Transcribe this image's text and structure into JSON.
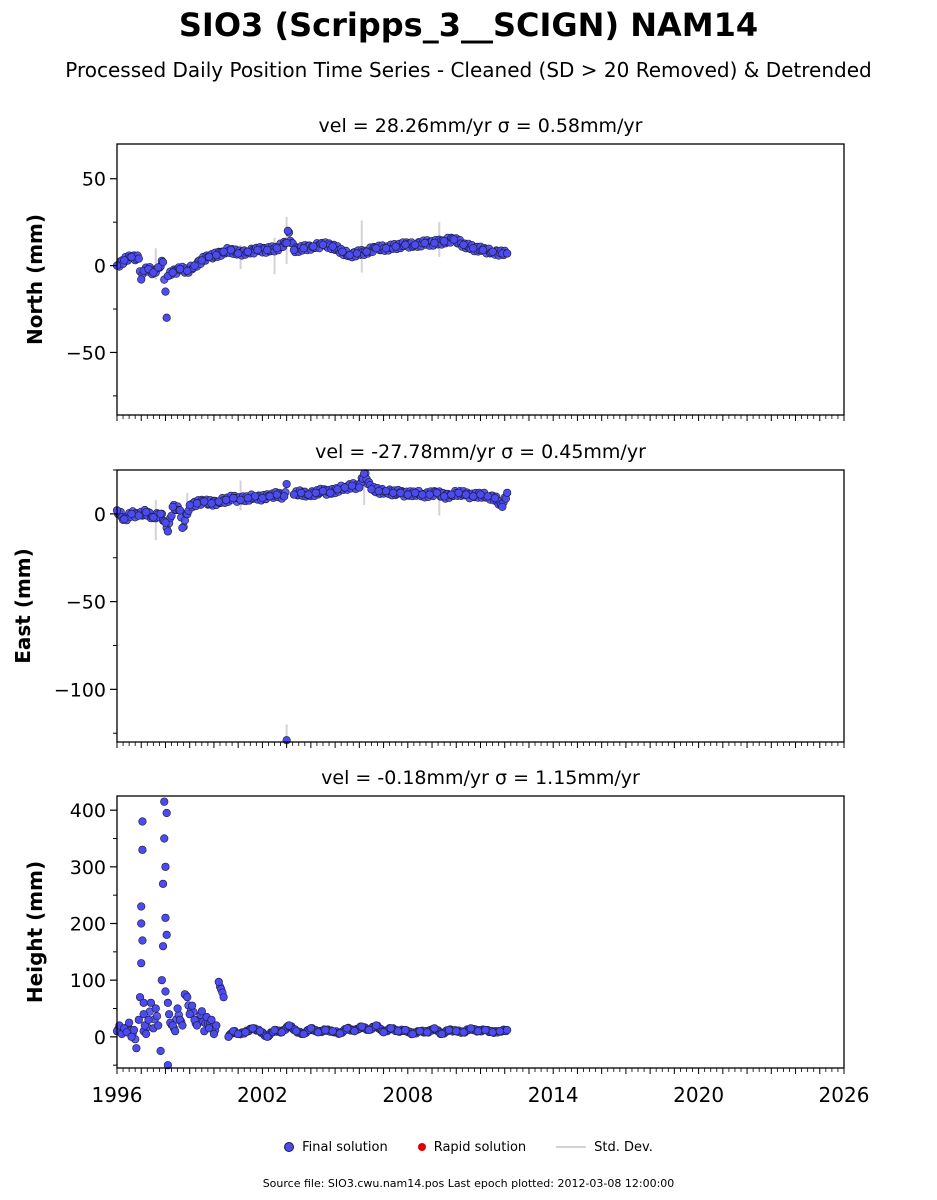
{
  "title": "SIO3 (Scripps_3__SCIGN) NAM14",
  "subtitle": "Processed Daily Position Time Series - Cleaned (SD > 20 Removed) & Detrended",
  "legend": {
    "final": "Final solution",
    "rapid": "Rapid solution",
    "std": "Std. Dev."
  },
  "footer": "Source file: SIO3.cwu.nam14.pos  Last epoch plotted: 2012-03-08 12:00:00",
  "colors": {
    "final": "#4b4bef",
    "rapid": "#e00000",
    "std": "#d3d3d3",
    "edge": "#1a1a3a"
  },
  "chart_data": [
    {
      "type": "scatter",
      "title": "vel = 28.26mm/yr   σ = 0.58mm/yr",
      "ylabel": "North (mm)",
      "xlim": [
        1996,
        2026
      ],
      "ylim": [
        -86,
        70
      ],
      "yticks": [
        -50,
        0,
        50
      ],
      "series": [
        {
          "name": "Final solution",
          "x": [
            1996.0,
            1996.3,
            1996.6,
            1996.9,
            1997.0,
            1997.1,
            1997.3,
            1997.5,
            1997.7,
            1997.9,
            1998.0,
            1998.05,
            1998.1,
            1998.3,
            1998.6,
            1998.9,
            1999.2,
            1999.5,
            1999.8,
            2000.1,
            2000.4,
            2000.7,
            2001.0,
            2001.4,
            2001.8,
            2002.2,
            2002.6,
            2003.0,
            2003.05,
            2003.3,
            2003.7,
            2004.1,
            2004.5,
            2004.9,
            2005.3,
            2005.6,
            2005.9,
            2006.3,
            2006.7,
            2007.1,
            2007.5,
            2007.9,
            2008.3,
            2008.7,
            2009.1,
            2009.5,
            2009.9,
            2010.3,
            2010.7,
            2011.1,
            2011.5,
            2011.9,
            2012.1
          ],
          "y": [
            0,
            3,
            5,
            4,
            -8,
            -3,
            -2,
            -4,
            -1,
            2,
            -15,
            -30,
            -6,
            -4,
            -2,
            -3,
            0,
            3,
            5,
            6,
            8,
            9,
            7,
            8,
            9,
            9,
            10,
            13,
            20,
            9,
            10,
            11,
            12,
            11,
            8,
            6,
            7,
            8,
            10,
            10,
            11,
            12,
            12,
            13,
            13,
            14,
            15,
            12,
            10,
            9,
            8,
            7,
            7
          ]
        },
        {
          "name": "Rapid solution",
          "x": [],
          "y": []
        }
      ],
      "std_dev": {
        "x": [
          1997.6,
          2001.1,
          2002.5,
          2003.0,
          2006.1,
          2009.3
        ],
        "low": [
          -8,
          -2,
          -5,
          1,
          -4,
          5
        ],
        "high": [
          10,
          12,
          16,
          28,
          26,
          25
        ]
      }
    },
    {
      "type": "scatter",
      "title": "vel = -27.78mm/yr   σ = 0.45mm/yr",
      "ylabel": "East (mm)",
      "xlim": [
        1996,
        2026
      ],
      "ylim": [
        -130,
        25
      ],
      "yticks": [
        -100,
        -50,
        0
      ],
      "series": [
        {
          "name": "Final solution",
          "x": [
            1996.0,
            1996.3,
            1996.6,
            1996.9,
            1997.2,
            1997.5,
            1997.8,
            1998.0,
            1998.1,
            1998.3,
            1998.6,
            1998.7,
            1999.0,
            1999.3,
            1999.6,
            1999.9,
            2000.2,
            2000.5,
            2000.8,
            2001.1,
            2001.4,
            2001.7,
            2002.0,
            2002.3,
            2002.6,
            2002.9,
            2003.0,
            2003.3,
            2003.6,
            2003.9,
            2004.2,
            2004.5,
            2004.8,
            2005.1,
            2005.4,
            2005.7,
            2006.0,
            2006.2,
            2006.5,
            2006.8,
            2007.1,
            2007.4,
            2007.7,
            2008.0,
            2008.3,
            2008.6,
            2008.9,
            2009.2,
            2009.5,
            2009.8,
            2010.1,
            2010.4,
            2010.7,
            2011.0,
            2011.3,
            2011.6,
            2011.9,
            2012.1
          ],
          "y": [
            2,
            -3,
            0,
            -1,
            1,
            -2,
            0,
            -5,
            -10,
            4,
            2,
            -8,
            5,
            6,
            7,
            6,
            7,
            8,
            9,
            8,
            9,
            10,
            9,
            10,
            11,
            10,
            17,
            11,
            12,
            11,
            12,
            13,
            12,
            14,
            15,
            16,
            15,
            23,
            14,
            13,
            13,
            12,
            12,
            11,
            12,
            11,
            11,
            12,
            10,
            11,
            12,
            11,
            10,
            11,
            10,
            9,
            4,
            12
          ]
        },
        {
          "name": "Rapid solution",
          "x": [],
          "y": []
        }
      ],
      "std_dev": {
        "x": [
          1997.6,
          1998.9,
          2001.1,
          2006.2,
          2009.3,
          2003.0
        ],
        "low": [
          -15,
          -5,
          2,
          5,
          -1,
          -130
        ],
        "high": [
          8,
          12,
          19,
          24,
          15,
          -120
        ]
      },
      "outliers": {
        "x": [
          2003.0
        ],
        "y": [
          -129
        ]
      }
    },
    {
      "type": "scatter",
      "title": "vel = -0.18mm/yr   σ = 1.15mm/yr",
      "ylabel": "Height (mm)",
      "xlim": [
        1996,
        2026
      ],
      "ylim": [
        -55,
        425
      ],
      "yticks": [
        0,
        100,
        200,
        300,
        400
      ],
      "series": [
        {
          "name": "Final solution",
          "x": [
            1996.0,
            1996.1,
            1996.2,
            1996.3,
            1996.4,
            1996.5,
            1996.6,
            1996.7,
            1996.8,
            1996.9,
            1996.95,
            1997.0,
            1997.0,
            1997.0,
            1997.05,
            1997.05,
            1997.05,
            1997.1,
            1997.1,
            1997.1,
            1997.15,
            1997.2,
            1997.3,
            1997.4,
            1997.5,
            1997.6,
            1997.7,
            1997.8,
            1997.85,
            1997.9,
            1997.9,
            1997.95,
            1997.95,
            1998.0,
            1998.0,
            1998.0,
            1998.05,
            1998.05,
            1998.1,
            1998.1,
            1998.15,
            1998.2,
            1998.3,
            1998.4,
            1998.5,
            1998.6,
            1998.7,
            1998.8,
            1998.9,
            1999.0,
            1999.1,
            1999.2,
            1999.3,
            1999.5,
            1999.6,
            1999.7,
            1999.8,
            1999.9,
            2000.0,
            2000.1,
            2000.2,
            2000.4,
            2000.6,
            2000.8,
            2001.0,
            2001.3,
            2001.6,
            2001.9,
            2002.2,
            2002.5,
            2002.8,
            2003.1,
            2003.4,
            2003.7,
            2004.0,
            2004.3,
            2004.6,
            2004.9,
            2005.2,
            2005.5,
            2005.8,
            2006.1,
            2006.4,
            2006.7,
            2007.0,
            2007.3,
            2007.6,
            2007.9,
            2008.2,
            2008.5,
            2008.8,
            2009.1,
            2009.4,
            2009.7,
            2010.0,
            2010.3,
            2010.6,
            2010.9,
            2011.2,
            2011.5,
            2011.8,
            2012.1
          ],
          "y": [
            10,
            20,
            5,
            15,
            8,
            25,
            0,
            12,
            -20,
            30,
            70,
            130,
            200,
            230,
            170,
            330,
            380,
            60,
            10,
            40,
            20,
            5,
            30,
            60,
            15,
            50,
            20,
            -25,
            100,
            160,
            270,
            350,
            415,
            300,
            210,
            80,
            180,
            395,
            -50,
            60,
            40,
            25,
            20,
            10,
            50,
            30,
            20,
            75,
            70,
            40,
            55,
            30,
            20,
            45,
            10,
            35,
            15,
            30,
            5,
            20,
            97,
            70,
            0,
            10,
            5,
            8,
            15,
            10,
            0,
            12,
            8,
            20,
            10,
            5,
            15,
            8,
            12,
            10,
            6,
            15,
            10,
            18,
            12,
            20,
            8,
            15,
            10,
            12,
            5,
            10,
            8,
            15,
            5,
            12,
            10,
            8,
            15,
            10,
            12,
            8,
            10,
            12
          ]
        },
        {
          "name": "Rapid solution",
          "x": [],
          "y": []
        }
      ],
      "std_dev": {
        "x": [],
        "low": [],
        "high": []
      }
    }
  ],
  "xticks": [
    "1996",
    "2002",
    "2008",
    "2014",
    "2020",
    "2026"
  ]
}
